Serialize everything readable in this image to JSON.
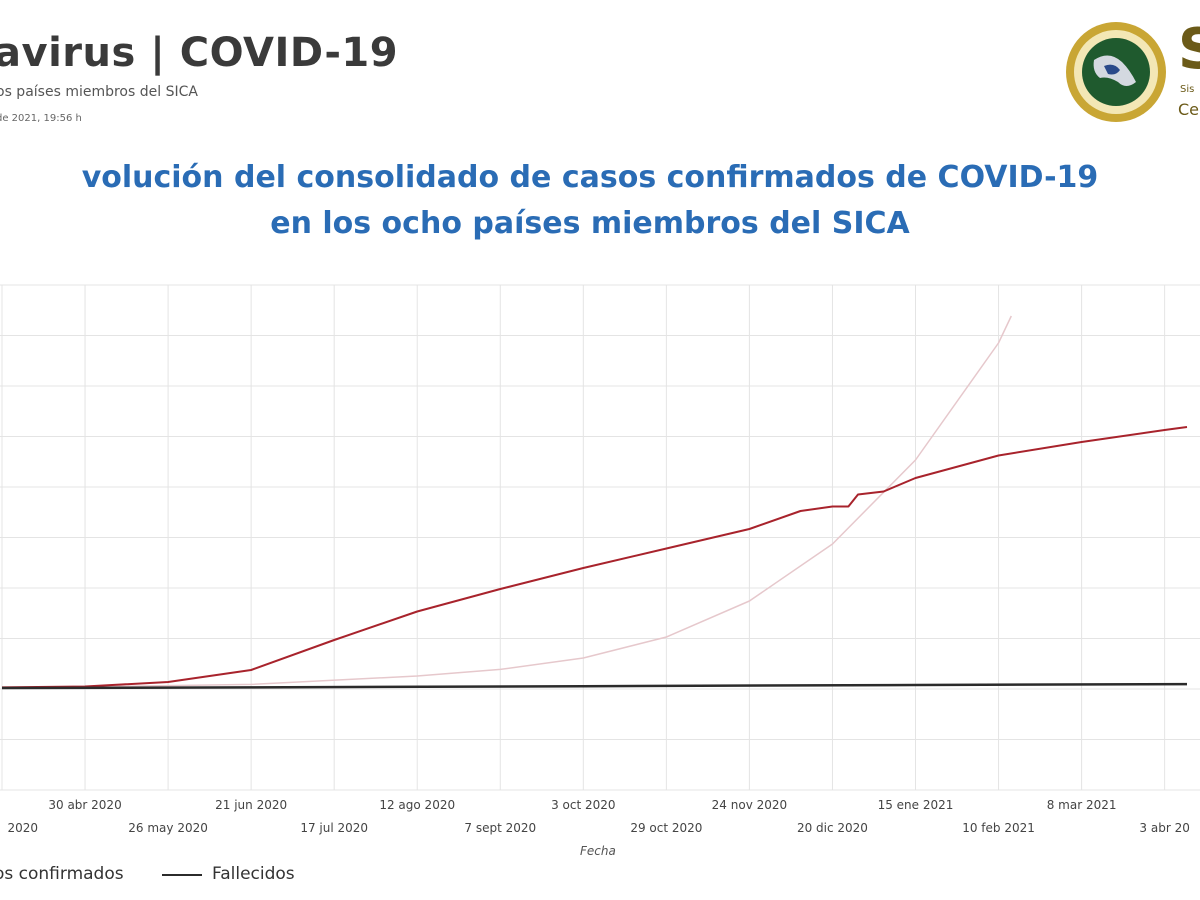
{
  "header": {
    "title": "avirus | COVID-19",
    "subtitle": "os países miembros del SICA",
    "date": "de 2021, 19:56 h"
  },
  "logo": {
    "text": "SI",
    "line1": "Sis",
    "line2": "Ce"
  },
  "chart_data": {
    "type": "line",
    "title": "volución del consolidado de casos confirmados de COVID-19",
    "title_line2": "en los ocho países miembros del SICA",
    "xlabel": "Fecha",
    "x_tick_labels_upper": [
      "30 abr 2020",
      "21 jun 2020",
      "12 ago 2020",
      "3 oct 2020",
      "24 nov 2020",
      "15 ene 2021",
      "8 mar 2021"
    ],
    "x_tick_labels_lower": [
      "2020",
      "26 may 2020",
      "17 jul 2020",
      "7 sept 2020",
      "29 oct 2020",
      "20 dic 2020",
      "10 feb 2021",
      "3 abr 20"
    ],
    "grid": true,
    "legend_position": "bottom-left",
    "series": [
      {
        "name": "os confirmados",
        "color": "#a8232c",
        "points": [
          [
            "2020-04-04",
            0.02
          ],
          [
            "2020-04-30",
            0.05
          ],
          [
            "2020-05-26",
            0.2
          ],
          [
            "2020-06-21",
            0.6
          ],
          [
            "2020-07-17",
            1.6
          ],
          [
            "2020-08-12",
            2.55
          ],
          [
            "2020-09-07",
            3.3
          ],
          [
            "2020-10-03",
            4.0
          ],
          [
            "2020-10-29",
            4.65
          ],
          [
            "2020-11-24",
            5.3
          ],
          [
            "2020-12-10",
            5.9
          ],
          [
            "2020-12-20",
            6.05
          ],
          [
            "2020-12-25",
            6.05
          ],
          [
            "2020-12-28",
            6.45
          ],
          [
            "2021-01-05",
            6.55
          ],
          [
            "2021-01-15",
            7.0
          ],
          [
            "2021-02-10",
            7.75
          ],
          [
            "2021-03-08",
            8.2
          ],
          [
            "2021-04-03",
            8.6
          ],
          [
            "2021-04-10",
            8.7
          ]
        ]
      },
      {
        "name": "Fallecidos",
        "color": "#2b2b2b",
        "points": [
          [
            "2020-04-04",
            0.0
          ],
          [
            "2020-06-21",
            0.02
          ],
          [
            "2020-10-03",
            0.06
          ],
          [
            "2021-01-15",
            0.1
          ],
          [
            "2021-04-10",
            0.13
          ]
        ]
      },
      {
        "name": "",
        "color": "#e6c8cc",
        "points": [
          [
            "2020-04-04",
            0.0
          ],
          [
            "2020-06-21",
            0.12
          ],
          [
            "2020-08-12",
            0.4
          ],
          [
            "2020-09-07",
            0.62
          ],
          [
            "2020-10-03",
            1.0
          ],
          [
            "2020-10-29",
            1.7
          ],
          [
            "2020-11-24",
            2.9
          ],
          [
            "2020-12-20",
            4.8
          ],
          [
            "2021-01-15",
            7.6
          ],
          [
            "2021-02-10",
            11.5
          ],
          [
            "2021-02-14",
            12.4
          ]
        ]
      }
    ]
  }
}
